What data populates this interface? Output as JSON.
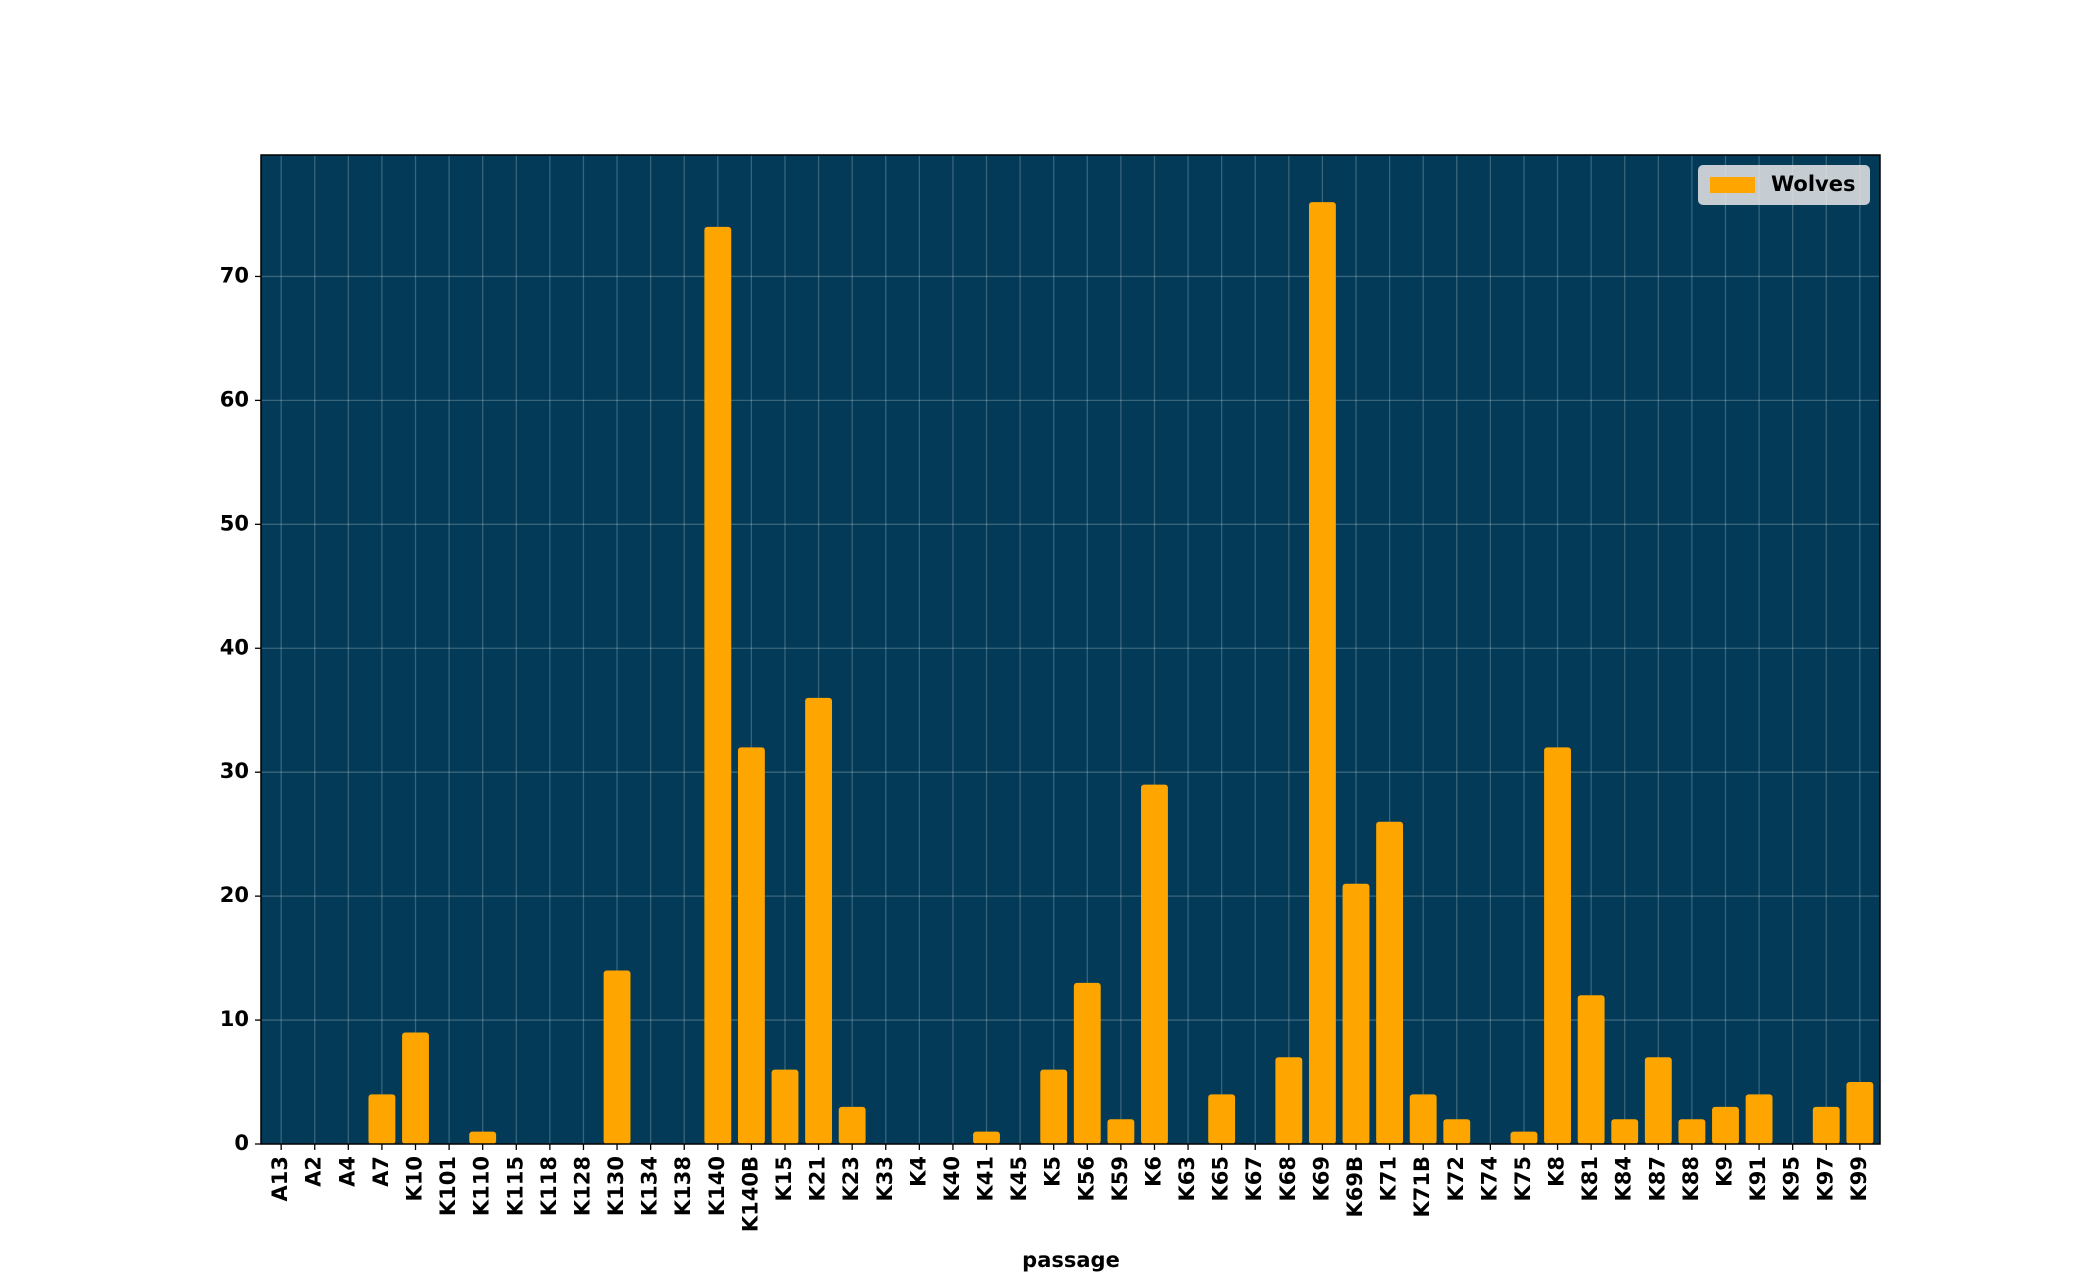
{
  "chart_data": {
    "type": "bar",
    "x_label": "passage",
    "categories": [
      "A13",
      "A2",
      "A4",
      "A7",
      "K10",
      "K101",
      "K110",
      "K115",
      "K118",
      "K128",
      "K130",
      "K134",
      "K138",
      "K140",
      "K140B",
      "K15",
      "K21",
      "K23",
      "K33",
      "K4",
      "K40",
      "K41",
      "K45",
      "K5",
      "K56",
      "K59",
      "K6",
      "K63",
      "K65",
      "K67",
      "K68",
      "K69",
      "K69B",
      "K71",
      "K71B",
      "K72",
      "K74",
      "K75",
      "K8",
      "K81",
      "K84",
      "K87",
      "K88",
      "K9",
      "K91",
      "K95",
      "K97",
      "K99"
    ],
    "series": [
      {
        "name": "Wolves",
        "color": "#ffa500",
        "values": [
          0,
          0,
          0,
          4,
          9,
          0,
          1,
          0,
          0,
          0,
          14,
          0,
          0,
          74,
          32,
          6,
          36,
          3,
          0,
          0,
          0,
          1,
          0,
          6,
          13,
          2,
          29,
          0,
          4,
          0,
          7,
          76,
          21,
          26,
          4,
          2,
          0,
          1,
          32,
          12,
          2,
          7,
          2,
          3,
          4,
          0,
          3,
          5
        ]
      }
    ],
    "ylim": [
      0,
      79.8
    ],
    "yticks": [
      0,
      10,
      20,
      30,
      40,
      50,
      60,
      70
    ],
    "grid": true,
    "legend": "upper right",
    "background": "#023a57"
  }
}
